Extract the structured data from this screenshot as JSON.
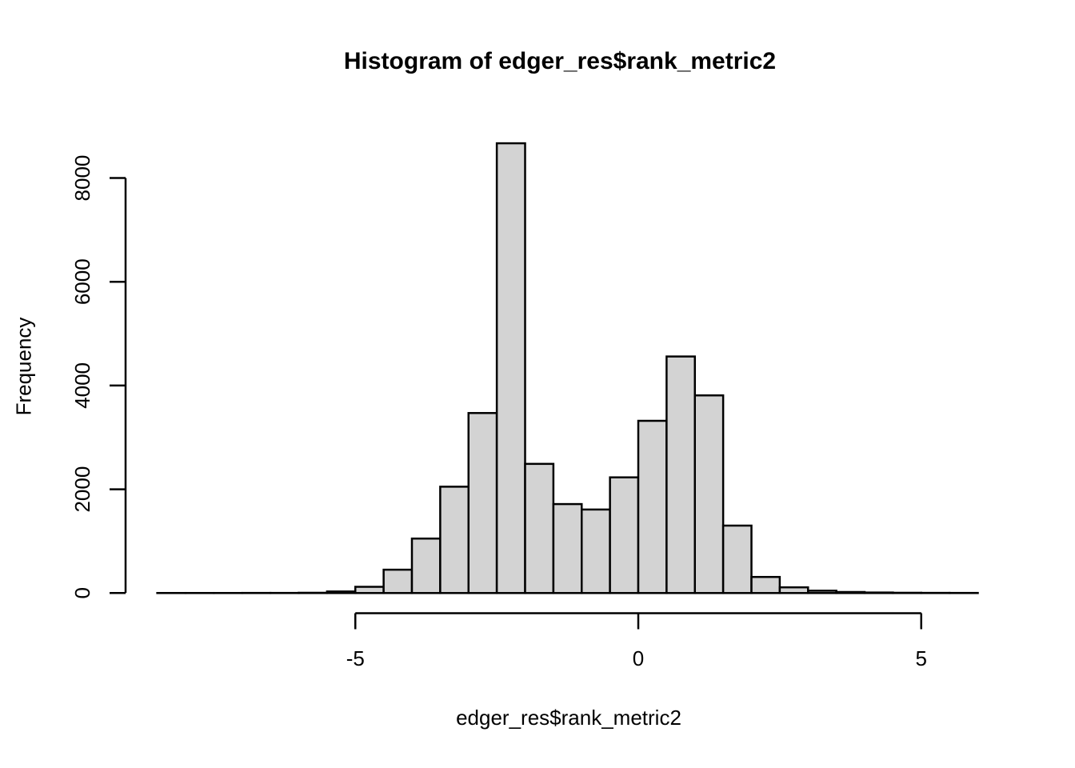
{
  "chart_data": {
    "type": "bar",
    "subtype": "histogram",
    "title": "Histogram of edger_res$rank_metric2",
    "xlabel": "edger_res$rank_metric2",
    "ylabel": "Frequency",
    "breaks": [
      -8.5,
      -8.0,
      -7.5,
      -7.0,
      -6.5,
      -6.0,
      -5.5,
      -5.0,
      -4.5,
      -4.0,
      -3.5,
      -3.0,
      -2.5,
      -2.0,
      -1.5,
      -1.0,
      -0.5,
      0.0,
      0.5,
      1.0,
      1.5,
      2.0,
      2.5,
      3.0,
      3.5,
      4.0,
      4.5,
      5.0,
      5.5,
      6.0
    ],
    "counts": [
      1,
      1,
      1,
      2,
      2,
      5,
      30,
      120,
      450,
      1050,
      2050,
      3470,
      8670,
      2490,
      1715,
      1610,
      2230,
      3320,
      4560,
      3810,
      1300,
      310,
      110,
      45,
      20,
      10,
      5,
      3,
      2
    ],
    "bin_width": 0.5,
    "xlim": [
      -8.5,
      6.0
    ],
    "ylim": [
      0,
      8000
    ],
    "xticks": {
      "values": [
        -5,
        0,
        5
      ],
      "labels": [
        "-5",
        "0",
        "5"
      ]
    },
    "yticks": {
      "values": [
        0,
        2000,
        4000,
        6000,
        8000
      ],
      "labels": [
        "0",
        "2000",
        "4000",
        "6000",
        "8000"
      ]
    },
    "grid": false,
    "legend_position": "none",
    "bar_fill": "#d3d3d3",
    "bar_stroke": "#000000",
    "axis_color": "#000000",
    "text_color": "#000000",
    "background": "#ffffff"
  }
}
